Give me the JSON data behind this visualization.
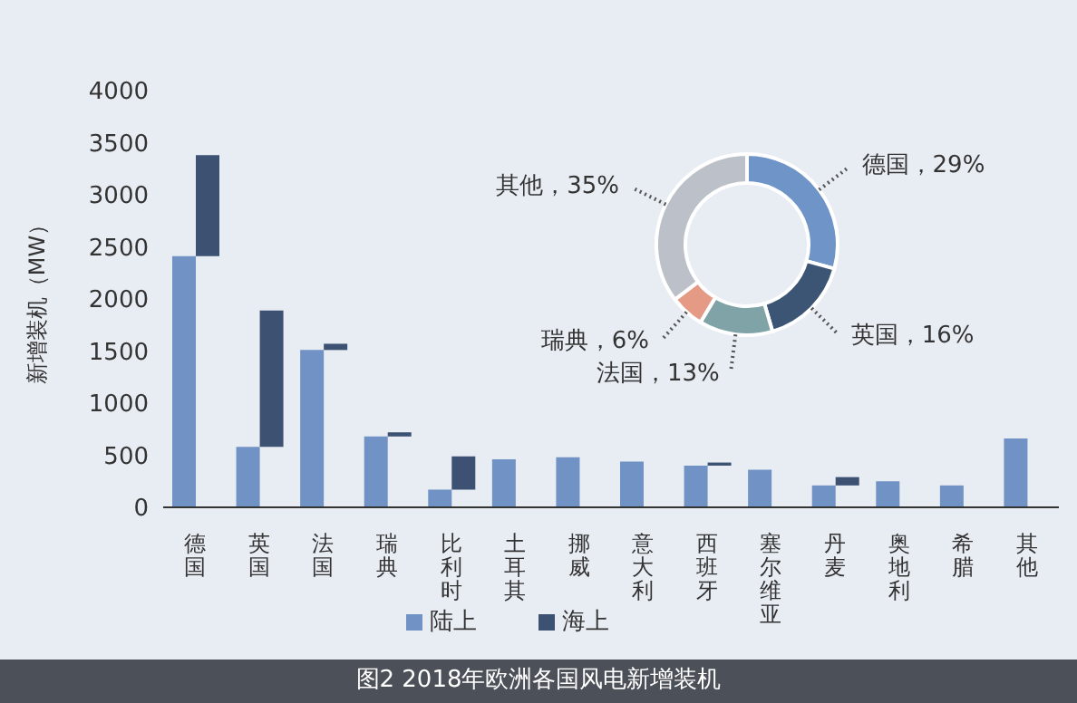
{
  "chart_data": [
    {
      "type": "bar",
      "title": "图2 2018年欧洲各国风电新增装机",
      "ylabel": "新增装机（MW）",
      "categories": [
        "德国",
        "英国",
        "法国",
        "瑞典",
        "比利时",
        "土耳其",
        "挪威",
        "意大利",
        "西班牙",
        "塞尔维亚",
        "丹麦",
        "奥地利",
        "希腊",
        "其他"
      ],
      "series": [
        {
          "name": "陆上",
          "color": "#7092c4",
          "values": [
            2410,
            580,
            1510,
            680,
            170,
            460,
            480,
            440,
            400,
            360,
            210,
            250,
            210,
            660
          ]
        },
        {
          "name": "海上",
          "color": "#3d5273",
          "values": [
            970,
            1310,
            60,
            40,
            320,
            null,
            null,
            null,
            30,
            null,
            80,
            null,
            null,
            null
          ],
          "base": [
            2410,
            580,
            1510,
            680,
            170,
            null,
            null,
            null,
            400,
            null,
            210,
            null,
            null,
            null
          ]
        }
      ],
      "ylim": [
        0,
        4000
      ],
      "yticks": [
        0,
        500,
        1000,
        1500,
        2000,
        2500,
        3000,
        3500,
        4000
      ],
      "grid": false,
      "legend": "bottom"
    },
    {
      "type": "donut",
      "categories": [
        "德国",
        "英国",
        "法国",
        "瑞典",
        "其他"
      ],
      "values": [
        29,
        16,
        13,
        6,
        35
      ],
      "value_labels": [
        "29%",
        "16%",
        "13%",
        "6%",
        "35%"
      ],
      "colors": [
        "#6f95c8",
        "#3c5574",
        "#7fa3a6",
        "#e49a85",
        "#bcc0c8"
      ]
    }
  ]
}
